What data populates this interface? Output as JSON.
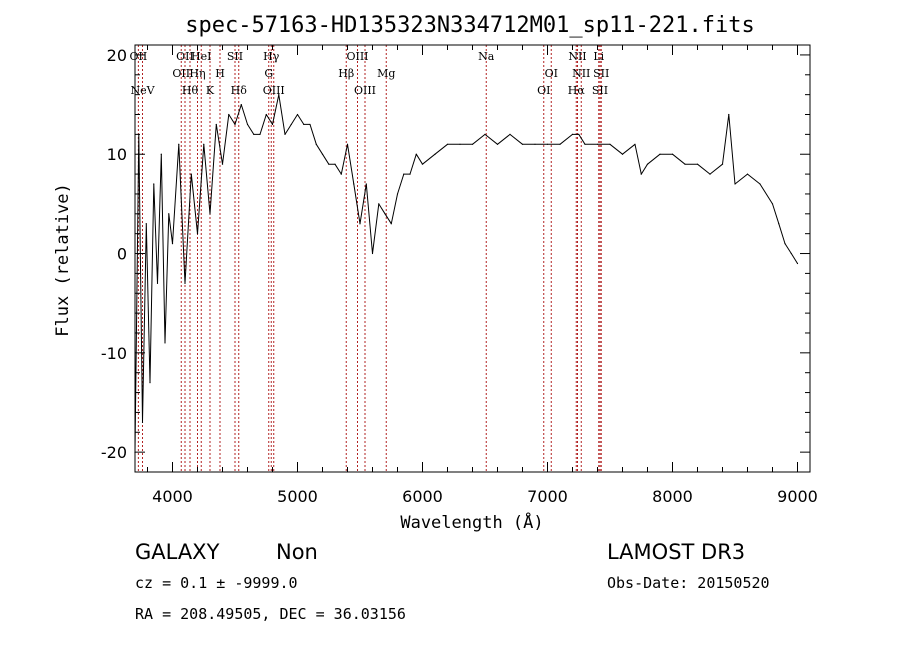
{
  "chart_data": {
    "type": "line",
    "title": "spec-57163-HD135323N334712M01_sp11-221.fits",
    "xlabel": "Wavelength (Å)",
    "ylabel": "Flux (relative)",
    "xlim": [
      3700,
      9100
    ],
    "ylim": [
      -22,
      21
    ],
    "xticks": [
      4000,
      5000,
      6000,
      7000,
      8000,
      9000
    ],
    "yticks": [
      -20,
      -10,
      0,
      10,
      20
    ],
    "grid": false,
    "line_color": "#000000",
    "marker_color": "#b22222",
    "spectral_lines": [
      {
        "label": "NeV",
        "x": 3760,
        "row": 3
      },
      {
        "label": "OII",
        "x": 3727,
        "row": 0
      },
      {
        "label": "OII",
        "x": 4100,
        "row": 0
      },
      {
        "label": "OII",
        "x": 4070,
        "row": 1
      },
      {
        "label": "Hθ",
        "x": 4140,
        "row": 2
      },
      {
        "label": "HeI",
        "x": 4230,
        "row": 0
      },
      {
        "label": "Hη",
        "x": 4200,
        "row": 1
      },
      {
        "label": "K",
        "x": 4300,
        "row": 2
      },
      {
        "label": "H",
        "x": 4380,
        "row": 1
      },
      {
        "label": "SII",
        "x": 4500,
        "row": 0
      },
      {
        "label": "Hδ",
        "x": 4530,
        "row": 2
      },
      {
        "label": "Hγ",
        "x": 4790,
        "row": 0
      },
      {
        "label": "G",
        "x": 4770,
        "row": 1
      },
      {
        "label": "OIII",
        "x": 4810,
        "row": 2
      },
      {
        "label": "OIII",
        "x": 5480,
        "row": 0
      },
      {
        "label": "Hβ",
        "x": 5390,
        "row": 1
      },
      {
        "label": "OIII",
        "x": 5540,
        "row": 2
      },
      {
        "label": "Mg",
        "x": 5710,
        "row": 1
      },
      {
        "label": "Na",
        "x": 6510,
        "row": 0
      },
      {
        "label": "OI",
        "x": 7030,
        "row": 1
      },
      {
        "label": "OI",
        "x": 6970,
        "row": 2
      },
      {
        "label": "NII",
        "x": 7240,
        "row": 0
      },
      {
        "label": "NII",
        "x": 7270,
        "row": 1
      },
      {
        "label": "Hα",
        "x": 7230,
        "row": 2
      },
      {
        "label": "Li",
        "x": 7410,
        "row": 0
      },
      {
        "label": "SII",
        "x": 7430,
        "row": 1
      },
      {
        "label": "SII",
        "x": 7420,
        "row": 2
      }
    ],
    "series": [
      {
        "x": [
          3700,
          3730,
          3760,
          3790,
          3820,
          3850,
          3880,
          3910,
          3940,
          3970,
          4000,
          4050,
          4100,
          4150,
          4200,
          4250,
          4300,
          4350,
          4400,
          4450,
          4500,
          4550,
          4600,
          4650,
          4700,
          4750,
          4800,
          4850,
          4900,
          4950,
          5000,
          5050,
          5100,
          5150,
          5200,
          5250,
          5300,
          5350,
          5400,
          5450,
          5500,
          5550,
          5600,
          5650,
          5700,
          5750,
          5800,
          5850,
          5900,
          5950,
          6000,
          6100,
          6200,
          6300,
          6400,
          6500,
          6600,
          6700,
          6800,
          6900,
          7000,
          7100,
          7200,
          7250,
          7300,
          7400,
          7500,
          7600,
          7700,
          7750,
          7800,
          7900,
          8000,
          8100,
          8200,
          8300,
          8400,
          8450,
          8500,
          8600,
          8700,
          8800,
          8850,
          8900,
          8950,
          9000
        ],
        "y": [
          -20,
          12,
          -17,
          3,
          -13,
          7,
          -3,
          10,
          -9,
          4,
          1,
          11,
          -3,
          8,
          2,
          11,
          4,
          13,
          9,
          14,
          13,
          15,
          13,
          12,
          12,
          14,
          13,
          16,
          12,
          13,
          14,
          13,
          13,
          11,
          10,
          9,
          9,
          8,
          11,
          7,
          3,
          7,
          0,
          5,
          4,
          3,
          6,
          8,
          8,
          10,
          9,
          10,
          11,
          11,
          11,
          12,
          11,
          12,
          11,
          11,
          11,
          11,
          12,
          12,
          11,
          11,
          11,
          10,
          11,
          8,
          9,
          10,
          10,
          9,
          9,
          8,
          9,
          14,
          7,
          8,
          7,
          5,
          3,
          1,
          0,
          -1
        ]
      }
    ]
  },
  "info": {
    "class_label": "GALAXY",
    "subclass_label": "Non",
    "cz_line": "cz = 0.1 ± -9999.0",
    "radec_line": "RA = 208.49505, DEC =  36.03156",
    "survey_label": "LAMOST DR3",
    "obsdate_line": "Obs-Date: 20150520"
  }
}
